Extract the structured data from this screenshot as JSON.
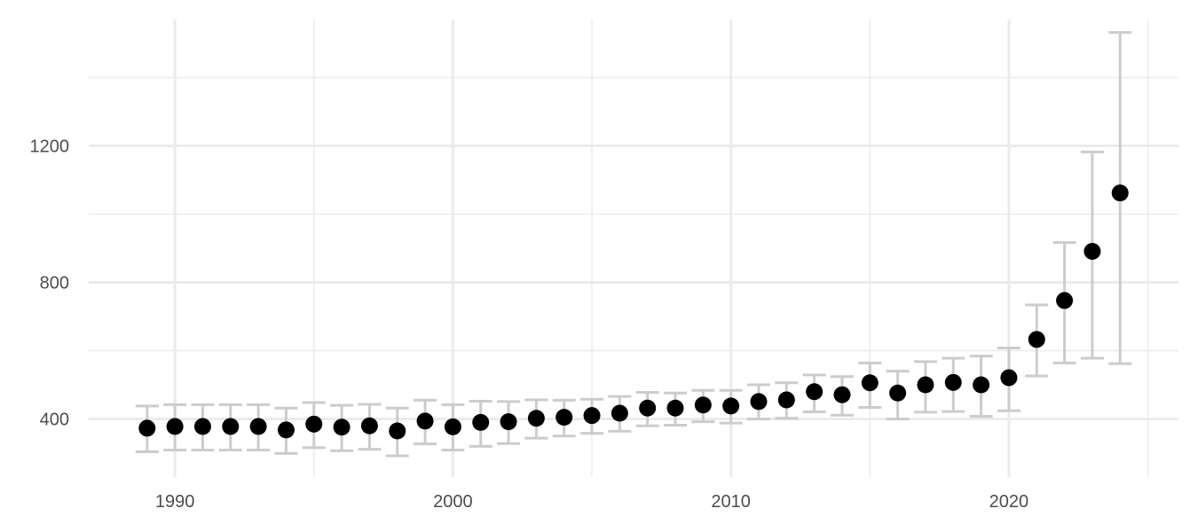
{
  "chart_data": {
    "type": "scatter",
    "title": "",
    "xlabel": "",
    "ylabel": "",
    "x_ticks": [
      1990,
      2000,
      2010,
      2020
    ],
    "y_ticks": [
      400,
      800,
      1200
    ],
    "xlim": [
      1986.9,
      2026.1
    ],
    "ylim": [
      230,
      1570
    ],
    "grid": true,
    "legend": "none",
    "colors": {
      "point": "#000000",
      "errorbar": "#cccccc",
      "grid": "#ebebeb"
    },
    "points": [
      {
        "x": 1989,
        "y": 373,
        "lower": 304,
        "upper": 438
      },
      {
        "x": 1990,
        "y": 378,
        "lower": 309,
        "upper": 442
      },
      {
        "x": 1991,
        "y": 378,
        "lower": 309,
        "upper": 442
      },
      {
        "x": 1992,
        "y": 378,
        "lower": 309,
        "upper": 442
      },
      {
        "x": 1993,
        "y": 378,
        "lower": 309,
        "upper": 442
      },
      {
        "x": 1994,
        "y": 368,
        "lower": 299,
        "upper": 432
      },
      {
        "x": 1995,
        "y": 385,
        "lower": 316,
        "upper": 448
      },
      {
        "x": 1996,
        "y": 376,
        "lower": 307,
        "upper": 440
      },
      {
        "x": 1997,
        "y": 380,
        "lower": 311,
        "upper": 443
      },
      {
        "x": 1998,
        "y": 365,
        "lower": 292,
        "upper": 432
      },
      {
        "x": 1999,
        "y": 394,
        "lower": 327,
        "upper": 455
      },
      {
        "x": 2000,
        "y": 377,
        "lower": 309,
        "upper": 442
      },
      {
        "x": 2001,
        "y": 390,
        "lower": 320,
        "upper": 452
      },
      {
        "x": 2002,
        "y": 392,
        "lower": 328,
        "upper": 451
      },
      {
        "x": 2003,
        "y": 402,
        "lower": 344,
        "upper": 456
      },
      {
        "x": 2004,
        "y": 405,
        "lower": 350,
        "upper": 455
      },
      {
        "x": 2005,
        "y": 410,
        "lower": 358,
        "upper": 458
      },
      {
        "x": 2006,
        "y": 417,
        "lower": 364,
        "upper": 466
      },
      {
        "x": 2007,
        "y": 432,
        "lower": 380,
        "upper": 478
      },
      {
        "x": 2008,
        "y": 432,
        "lower": 382,
        "upper": 476
      },
      {
        "x": 2009,
        "y": 441,
        "lower": 392,
        "upper": 484
      },
      {
        "x": 2010,
        "y": 438,
        "lower": 388,
        "upper": 484
      },
      {
        "x": 2011,
        "y": 451,
        "lower": 400,
        "upper": 500
      },
      {
        "x": 2012,
        "y": 456,
        "lower": 402,
        "upper": 506
      },
      {
        "x": 2013,
        "y": 480,
        "lower": 421,
        "upper": 529
      },
      {
        "x": 2014,
        "y": 471,
        "lower": 411,
        "upper": 524
      },
      {
        "x": 2015,
        "y": 506,
        "lower": 434,
        "upper": 564
      },
      {
        "x": 2016,
        "y": 476,
        "lower": 400,
        "upper": 540
      },
      {
        "x": 2017,
        "y": 500,
        "lower": 420,
        "upper": 568
      },
      {
        "x": 2018,
        "y": 507,
        "lower": 422,
        "upper": 578
      },
      {
        "x": 2019,
        "y": 500,
        "lower": 408,
        "upper": 584
      },
      {
        "x": 2020,
        "y": 521,
        "lower": 424,
        "upper": 608
      },
      {
        "x": 2021,
        "y": 633,
        "lower": 526,
        "upper": 734
      },
      {
        "x": 2022,
        "y": 747,
        "lower": 564,
        "upper": 917
      },
      {
        "x": 2023,
        "y": 891,
        "lower": 578,
        "upper": 1182
      },
      {
        "x": 2024,
        "y": 1062,
        "lower": 562,
        "upper": 1532
      }
    ]
  }
}
